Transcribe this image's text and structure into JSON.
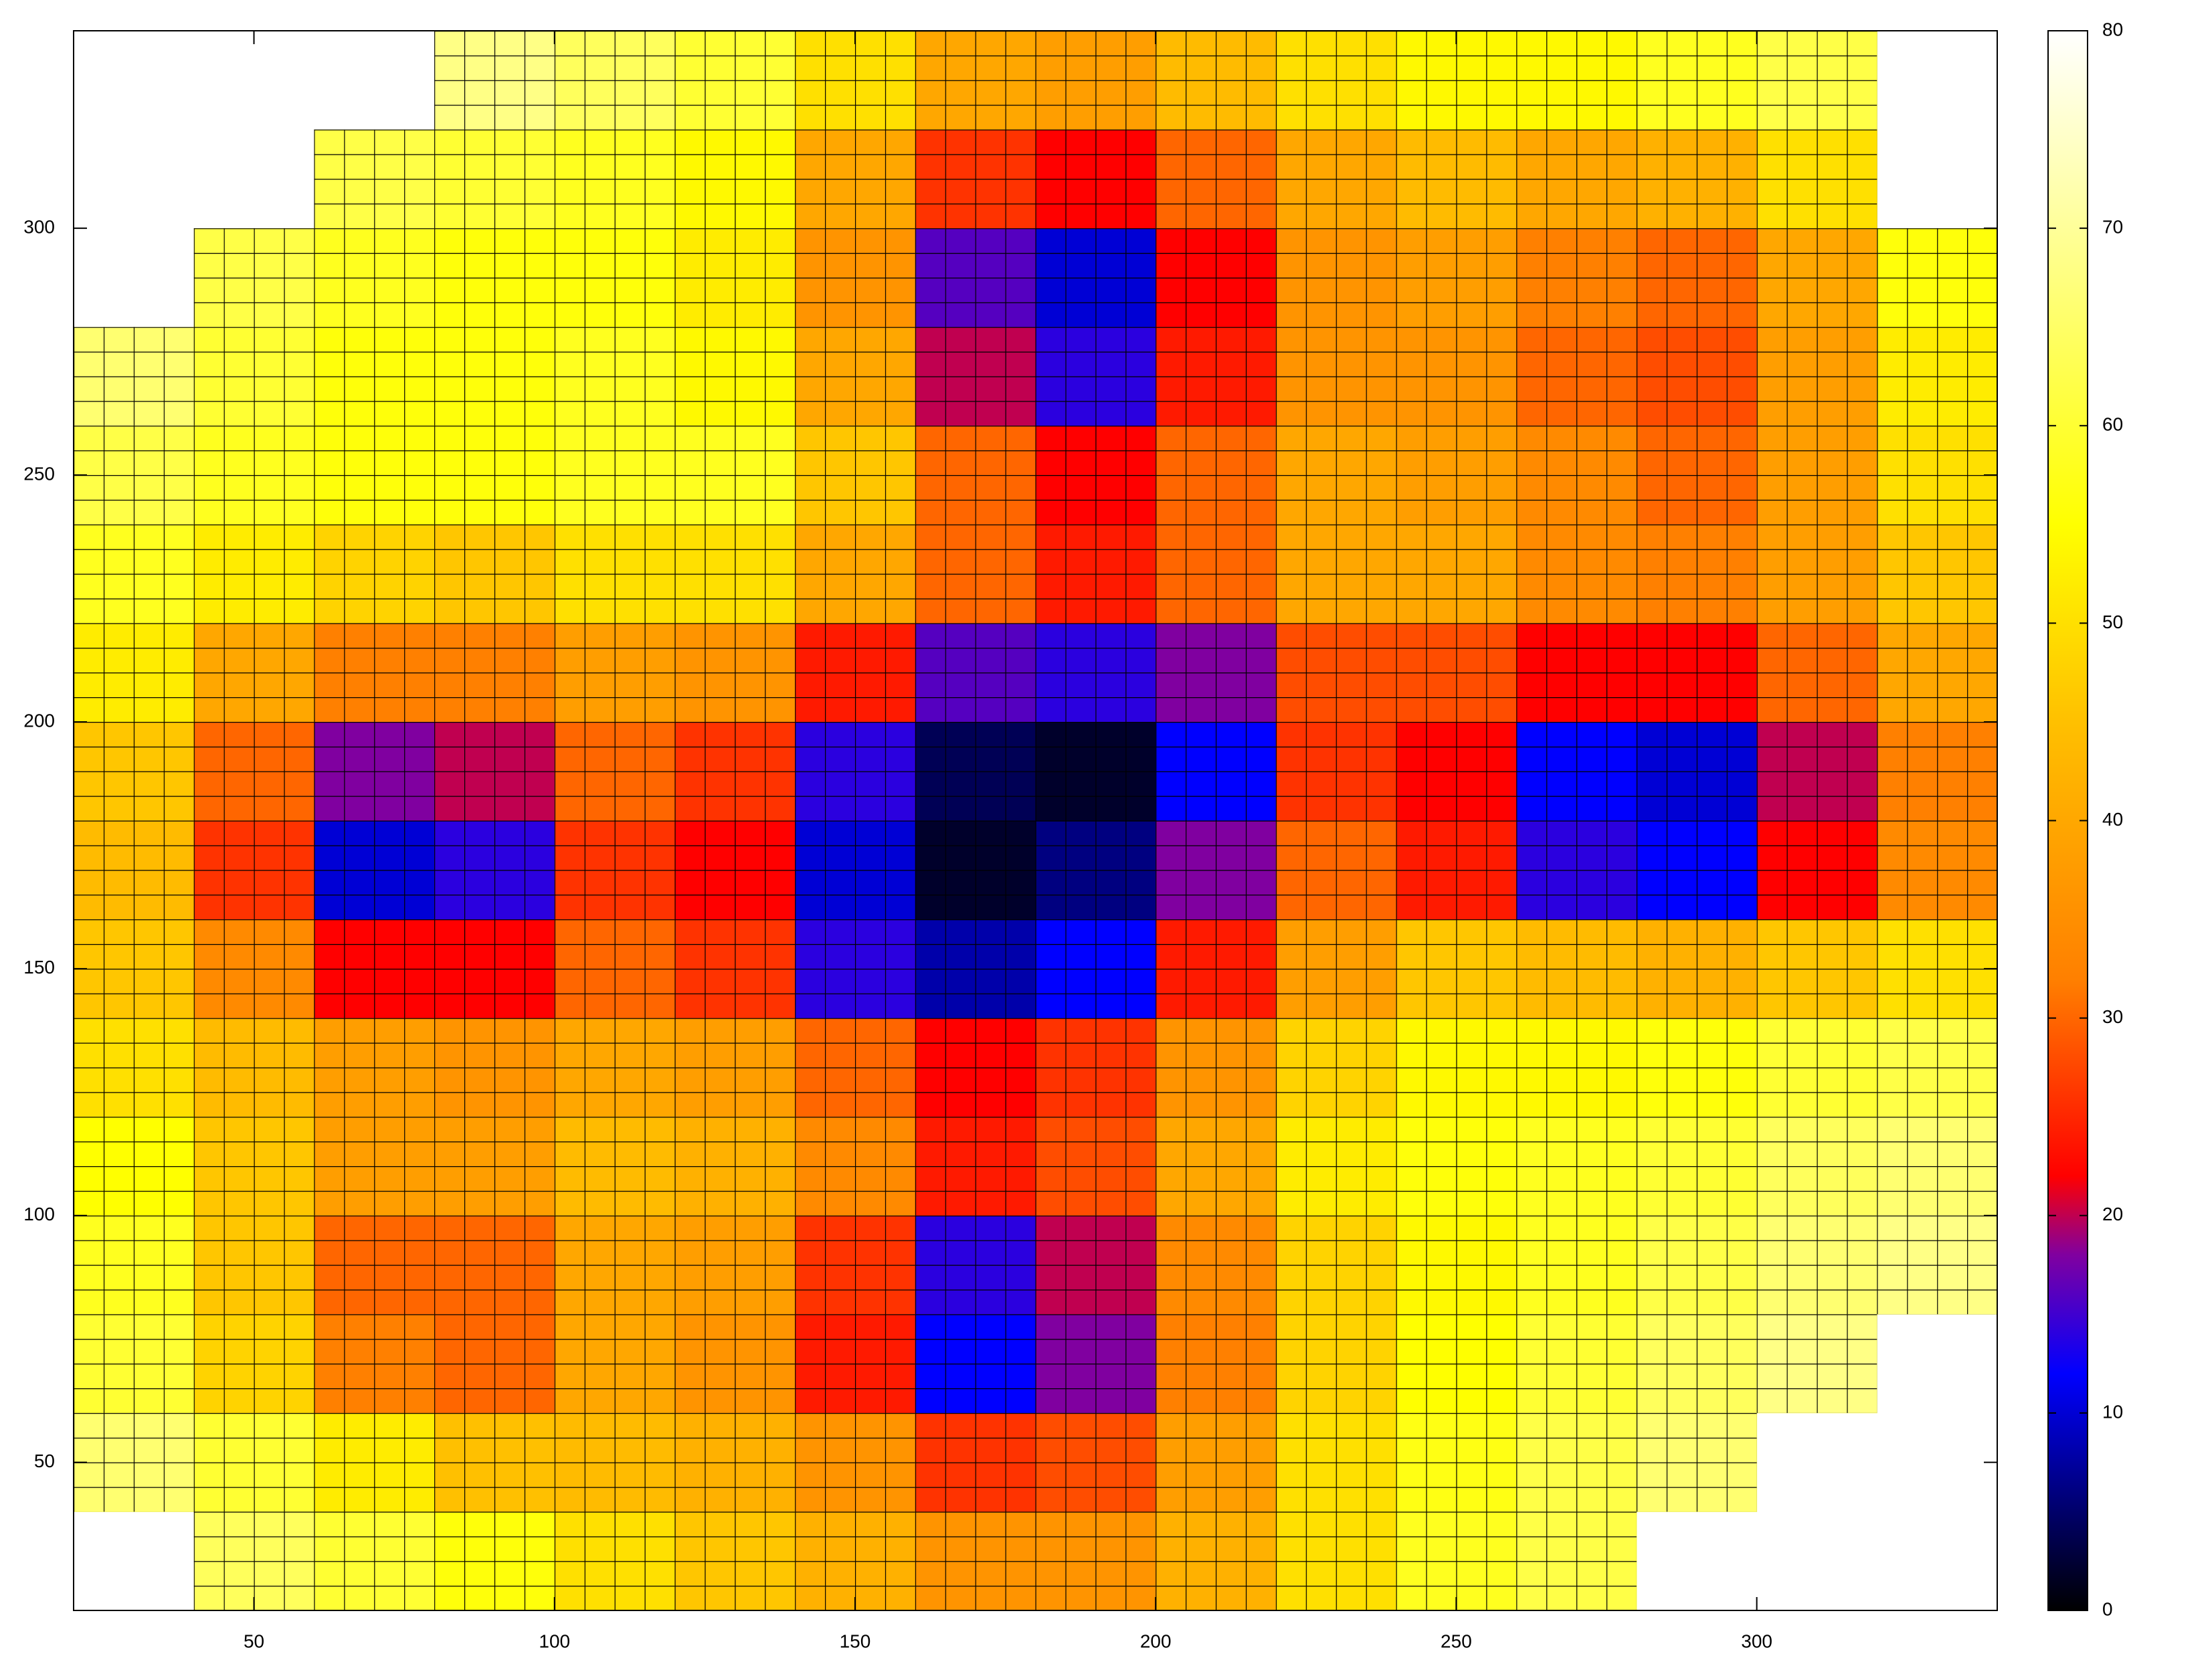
{
  "chart_data": {
    "type": "heatmap",
    "x": [
      30,
      50,
      70,
      90,
      110,
      130,
      150,
      170,
      190,
      210,
      230,
      250,
      270,
      290,
      310,
      330
    ],
    "y": [
      30,
      50,
      70,
      90,
      110,
      130,
      150,
      170,
      190,
      210,
      230,
      250,
      270,
      290,
      310,
      330
    ],
    "z": [
      [
        null,
        64,
        60,
        56,
        50,
        46,
        42,
        36,
        36,
        42,
        50,
        58,
        62,
        null,
        null,
        null
      ],
      [
        66,
        60,
        52,
        45,
        44,
        42,
        36,
        26,
        28,
        38,
        50,
        57,
        62,
        66,
        null,
        null
      ],
      [
        60,
        48,
        32,
        30,
        40,
        36,
        24,
        12,
        18,
        32,
        48,
        55,
        60,
        64,
        68,
        null
      ],
      [
        58,
        46,
        30,
        30,
        40,
        38,
        26,
        14,
        20,
        34,
        48,
        54,
        58,
        62,
        66,
        68
      ],
      [
        55,
        46,
        38,
        38,
        44,
        42,
        34,
        24,
        28,
        40,
        52,
        56,
        58,
        60,
        64,
        66
      ],
      [
        50,
        44,
        38,
        36,
        40,
        38,
        30,
        22,
        26,
        36,
        48,
        54,
        54,
        56,
        60,
        62
      ],
      [
        46,
        34,
        22,
        22,
        30,
        26,
        14,
        8,
        12,
        24,
        38,
        46,
        44,
        42,
        46,
        50
      ],
      [
        44,
        26,
        10,
        14,
        26,
        22,
        10,
        2,
        6,
        18,
        30,
        24,
        14,
        12,
        22,
        34
      ],
      [
        46,
        30,
        18,
        20,
        30,
        26,
        14,
        4,
        2,
        12,
        26,
        22,
        12,
        10,
        20,
        32
      ],
      [
        52,
        40,
        32,
        32,
        38,
        36,
        24,
        16,
        14,
        18,
        28,
        28,
        22,
        22,
        30,
        40
      ],
      [
        58,
        52,
        48,
        46,
        50,
        50,
        40,
        30,
        24,
        30,
        40,
        40,
        34,
        32,
        38,
        46
      ],
      [
        62,
        58,
        56,
        56,
        58,
        58,
        46,
        30,
        22,
        30,
        40,
        38,
        34,
        30,
        38,
        50
      ],
      [
        66,
        60,
        56,
        56,
        58,
        54,
        40,
        20,
        14,
        24,
        36,
        36,
        30,
        28,
        38,
        52
      ],
      [
        null,
        62,
        58,
        56,
        56,
        52,
        36,
        16,
        10,
        22,
        36,
        38,
        32,
        30,
        40,
        56
      ],
      [
        null,
        null,
        62,
        60,
        58,
        54,
        40,
        26,
        22,
        30,
        40,
        44,
        40,
        42,
        50,
        null
      ],
      [
        null,
        null,
        null,
        68,
        64,
        60,
        50,
        40,
        38,
        44,
        50,
        54,
        54,
        58,
        62,
        null
      ]
    ],
    "xlim": [
      20,
      340
    ],
    "ylim": [
      20,
      340
    ],
    "xticks": [
      50,
      100,
      150,
      200,
      250,
      300
    ],
    "yticks": [
      50,
      100,
      150,
      200,
      250,
      300
    ],
    "cblim": [
      0,
      80
    ],
    "cbticks": [
      0,
      10,
      20,
      30,
      40,
      50,
      60,
      70,
      80
    ],
    "colormap": [
      {
        "value": 0,
        "color": "#000000"
      },
      {
        "value": 12,
        "color": "#0000ff"
      },
      {
        "value": 18,
        "color": "#8000a0"
      },
      {
        "value": 22,
        "color": "#ff0000"
      },
      {
        "value": 32,
        "color": "#ff8000"
      },
      {
        "value": 45,
        "color": "#ffc000"
      },
      {
        "value": 55,
        "color": "#ffff00"
      },
      {
        "value": 80,
        "color": "#ffffff"
      }
    ]
  }
}
